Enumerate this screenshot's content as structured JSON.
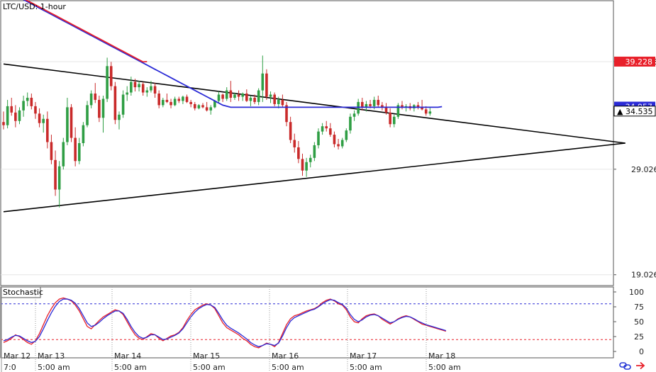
{
  "chart_data": {
    "type": "candlestick",
    "title": "LTC/USD: 1-hour",
    "indicator_title": "Stochastic",
    "price_axis": {
      "ticks": [
        "39.228",
        "29.026",
        "19.026"
      ],
      "tick_values": [
        39.228,
        29.026,
        19.026
      ],
      "ylim": [
        18.0,
        45.0
      ]
    },
    "markers": [
      {
        "label": "39.228",
        "value": 39.228,
        "color": "#e8202a"
      },
      {
        "label": "34.957",
        "value": 34.957,
        "color": "#2a2ad6"
      },
      {
        "label": "34.535",
        "value": 34.535,
        "color": "#000000"
      }
    ],
    "stoch_axis": {
      "ticks": [
        "100",
        "75",
        "50",
        "25",
        "0"
      ],
      "tick_values": [
        100,
        75,
        50,
        25,
        0
      ],
      "upper_level": 80,
      "lower_level": 20
    },
    "time_axis": {
      "dates": [
        "Mar 12",
        "Mar 13",
        "Mar 14",
        "Mar 15",
        "Mar 16",
        "Mar 17",
        "Mar 18"
      ],
      "times": [
        "7:0",
        "5:00 am",
        "5:00 am",
        "5:00 am",
        "5:00 am",
        "5:00 am",
        "5:00 am"
      ]
    },
    "candles": [
      [
        33.5,
        34.5,
        32.8,
        33.2
      ],
      [
        33.2,
        35.6,
        32.9,
        35.0
      ],
      [
        35.0,
        35.8,
        34.1,
        34.4
      ],
      [
        34.4,
        35.1,
        33.0,
        33.6
      ],
      [
        33.6,
        34.9,
        33.3,
        34.6
      ],
      [
        34.6,
        36.0,
        34.0,
        35.5
      ],
      [
        35.5,
        36.3,
        35.0,
        35.8
      ],
      [
        35.8,
        36.2,
        34.7,
        35.0
      ],
      [
        35.0,
        35.4,
        33.8,
        34.3
      ],
      [
        34.3,
        34.8,
        33.0,
        33.4
      ],
      [
        33.4,
        34.2,
        32.5,
        33.8
      ],
      [
        33.8,
        34.5,
        31.0,
        31.6
      ],
      [
        31.6,
        32.3,
        29.5,
        29.9
      ],
      [
        29.9,
        30.8,
        26.5,
        27.1
      ],
      [
        27.1,
        29.8,
        25.4,
        29.3
      ],
      [
        29.3,
        32.0,
        29.0,
        31.6
      ],
      [
        31.6,
        35.8,
        31.3,
        34.9
      ],
      [
        34.9,
        35.2,
        31.6,
        32.0
      ],
      [
        32.0,
        33.0,
        29.3,
        29.8
      ],
      [
        29.8,
        32.0,
        29.5,
        31.5
      ],
      [
        31.5,
        33.5,
        31.2,
        33.2
      ],
      [
        33.2,
        35.5,
        33.0,
        35.1
      ],
      [
        35.1,
        36.5,
        34.8,
        36.2
      ],
      [
        36.2,
        37.2,
        35.3,
        35.6
      ],
      [
        35.6,
        36.0,
        33.5,
        33.9
      ],
      [
        33.9,
        36.0,
        32.5,
        35.7
      ],
      [
        35.7,
        39.6,
        35.4,
        38.8
      ],
      [
        38.8,
        39.2,
        36.5,
        36.9
      ],
      [
        36.9,
        37.3,
        33.3,
        33.7
      ],
      [
        33.7,
        34.5,
        32.8,
        34.2
      ],
      [
        34.2,
        36.5,
        33.9,
        36.1
      ],
      [
        36.1,
        36.9,
        35.5,
        36.3
      ],
      [
        36.3,
        37.8,
        36.0,
        37.3
      ],
      [
        37.3,
        37.6,
        36.4,
        36.8
      ],
      [
        36.8,
        37.4,
        36.4,
        37.1
      ],
      [
        37.1,
        37.3,
        36.0,
        36.3
      ],
      [
        36.3,
        36.8,
        35.9,
        36.5
      ],
      [
        36.5,
        37.4,
        36.3,
        36.9
      ],
      [
        36.9,
        37.2,
        35.8,
        36.2
      ],
      [
        36.2,
        36.5,
        34.8,
        35.1
      ],
      [
        35.1,
        35.8,
        34.9,
        35.6
      ],
      [
        35.6,
        36.2,
        35.3,
        35.4
      ],
      [
        35.4,
        35.7,
        34.8,
        35.1
      ],
      [
        35.1,
        35.9,
        35.0,
        35.7
      ],
      [
        35.7,
        35.9,
        35.3,
        35.5
      ],
      [
        35.5,
        36.0,
        35.2,
        35.9
      ],
      [
        35.9,
        36.1,
        35.3,
        35.4
      ],
      [
        35.4,
        35.6,
        34.9,
        35.2
      ],
      [
        35.2,
        35.4,
        34.6,
        34.8
      ],
      [
        34.8,
        35.2,
        34.7,
        35.1
      ],
      [
        35.1,
        35.3,
        34.8,
        34.9
      ],
      [
        34.9,
        35.4,
        34.5,
        34.6
      ],
      [
        34.6,
        35.1,
        34.2,
        34.9
      ],
      [
        34.9,
        35.6,
        34.8,
        35.5
      ],
      [
        35.5,
        36.4,
        35.3,
        36.1
      ],
      [
        36.1,
        36.2,
        35.4,
        35.7
      ],
      [
        35.7,
        36.8,
        35.5,
        36.5
      ],
      [
        36.5,
        37.4,
        35.4,
        35.8
      ],
      [
        35.8,
        36.3,
        35.6,
        36.1
      ],
      [
        36.1,
        36.5,
        35.5,
        35.9
      ],
      [
        35.9,
        36.3,
        35.5,
        36.2
      ],
      [
        36.2,
        36.6,
        35.4,
        35.5
      ],
      [
        35.5,
        36.0,
        35.0,
        35.8
      ],
      [
        35.8,
        36.1,
        35.2,
        35.4
      ],
      [
        35.4,
        36.7,
        35.1,
        36.5
      ],
      [
        36.5,
        39.8,
        35.4,
        38.1
      ],
      [
        38.1,
        38.5,
        35.6,
        35.9
      ],
      [
        35.9,
        36.4,
        35.3,
        36.1
      ],
      [
        36.1,
        36.3,
        35.0,
        35.2
      ],
      [
        35.2,
        35.9,
        34.8,
        35.6
      ],
      [
        35.6,
        36.1,
        34.9,
        35.1
      ],
      [
        35.1,
        35.4,
        33.1,
        33.5
      ],
      [
        33.5,
        34.0,
        31.5,
        31.8
      ],
      [
        31.8,
        32.4,
        30.6,
        31.1
      ],
      [
        31.1,
        31.7,
        29.6,
        30.0
      ],
      [
        30.0,
        30.5,
        28.4,
        28.9
      ],
      [
        28.9,
        30.1,
        28.3,
        29.7
      ],
      [
        29.7,
        30.4,
        29.2,
        30.1
      ],
      [
        30.1,
        31.6,
        29.8,
        31.3
      ],
      [
        31.3,
        32.9,
        31.0,
        32.6
      ],
      [
        32.6,
        33.4,
        32.3,
        33.1
      ],
      [
        33.1,
        33.6,
        32.6,
        32.9
      ],
      [
        32.9,
        33.4,
        32.1,
        32.3
      ],
      [
        32.3,
        32.6,
        31.1,
        31.4
      ],
      [
        31.4,
        31.9,
        30.9,
        31.2
      ],
      [
        31.2,
        32.0,
        31.0,
        31.8
      ],
      [
        31.8,
        32.9,
        31.6,
        32.7
      ],
      [
        32.7,
        34.3,
        32.4,
        34.0
      ],
      [
        34.0,
        34.6,
        33.6,
        34.3
      ],
      [
        34.3,
        35.7,
        34.1,
        35.4
      ],
      [
        35.4,
        35.8,
        34.6,
        34.9
      ],
      [
        34.9,
        35.5,
        34.5,
        35.2
      ],
      [
        35.2,
        35.6,
        34.8,
        35.0
      ],
      [
        35.0,
        35.9,
        34.7,
        35.6
      ],
      [
        35.6,
        36.0,
        34.9,
        35.1
      ],
      [
        35.1,
        35.4,
        34.6,
        34.9
      ],
      [
        34.9,
        35.3,
        34.2,
        34.4
      ],
      [
        34.4,
        34.8,
        33.0,
        33.3
      ],
      [
        33.3,
        34.2,
        33.0,
        34.0
      ],
      [
        34.0,
        35.3,
        33.8,
        35.1
      ],
      [
        35.1,
        35.5,
        34.7,
        34.9
      ],
      [
        34.9,
        35.2,
        34.5,
        35.0
      ],
      [
        35.0,
        35.3,
        34.6,
        34.8
      ],
      [
        34.8,
        35.2,
        34.5,
        35.1
      ],
      [
        35.1,
        35.4,
        34.7,
        34.9
      ],
      [
        34.9,
        35.6,
        34.6,
        34.7
      ],
      [
        34.7,
        35.0,
        34.1,
        34.3
      ],
      [
        34.3,
        34.9,
        34.1,
        34.5
      ]
    ],
    "series": [
      {
        "name": "SMA",
        "color": "#2a2ad6",
        "values": [
          46.1,
          45.9,
          45.7,
          45.5,
          45.3,
          45.1,
          44.9,
          44.7,
          44.5,
          44.3,
          44.1,
          43.9,
          43.7,
          43.5,
          43.3,
          43.1,
          42.9,
          42.7,
          42.5,
          42.3,
          42.1,
          41.9,
          41.7,
          41.5,
          41.3,
          41.1,
          40.9,
          40.7,
          40.5,
          40.3,
          40.1,
          39.9,
          39.7,
          39.5,
          39.3,
          39.1,
          38.9,
          38.7,
          38.5,
          38.3,
          38.1,
          37.9,
          37.7,
          37.5,
          37.3,
          37.1,
          36.9,
          36.7,
          36.5,
          36.3,
          36.1,
          35.9,
          35.7,
          35.5,
          35.3,
          35.1,
          35.0,
          34.9,
          34.9,
          34.9,
          34.9,
          34.9,
          34.9,
          34.9,
          34.9,
          34.9,
          34.9,
          34.9,
          34.9,
          34.9,
          34.9,
          34.9,
          34.9,
          34.9,
          34.9,
          34.9,
          34.9,
          34.9,
          34.9,
          34.9,
          34.9,
          34.9,
          34.9,
          34.9,
          34.9,
          34.9,
          34.9,
          34.9,
          34.9,
          34.9,
          34.9,
          34.9,
          34.9,
          34.9,
          34.9,
          34.9,
          34.9,
          34.9,
          34.9,
          34.9,
          34.9,
          34.9,
          34.9,
          34.9,
          34.9,
          34.9,
          34.9,
          34.9,
          34.9,
          34.9,
          34.96
        ]
      },
      {
        "name": "EMA",
        "color": "#e8202a",
        "values": [
          46.2,
          46.0,
          45.8,
          45.6,
          45.4,
          45.2,
          45.0,
          44.8,
          44.6,
          44.4,
          44.2,
          44.0,
          43.8,
          43.6,
          43.4,
          43.2,
          43.0,
          42.8,
          42.6,
          42.4,
          42.2,
          42.0,
          41.8,
          41.6,
          41.4,
          41.2,
          41.0,
          40.8,
          40.6,
          40.4,
          40.2,
          40.0,
          39.8,
          39.6,
          39.4,
          39.2,
          39.23
        ]
      },
      {
        "name": "%K",
        "color": "#e8202a",
        "values": [
          15,
          18,
          22,
          28,
          25,
          20,
          15,
          12,
          18,
          30,
          45,
          60,
          72,
          82,
          88,
          90,
          88,
          85,
          78,
          68,
          55,
          42,
          38,
          45,
          52,
          58,
          62,
          66,
          70,
          68,
          62,
          50,
          38,
          28,
          22,
          20,
          25,
          30,
          28,
          22,
          18,
          22,
          26,
          28,
          32,
          40,
          52,
          62,
          70,
          74,
          78,
          80,
          78,
          72,
          60,
          48,
          40,
          36,
          32,
          28,
          22,
          18,
          12,
          8,
          6,
          10,
          14,
          12,
          8,
          15,
          30,
          45,
          55,
          60,
          62,
          65,
          68,
          70,
          72,
          76,
          82,
          86,
          88,
          85,
          80,
          78,
          70,
          58,
          50,
          48,
          55,
          60,
          62,
          63,
          60,
          54,
          50,
          46,
          50,
          55,
          58,
          60,
          58,
          54,
          50,
          46,
          44,
          42,
          40,
          38,
          36,
          34
        ]
      },
      {
        "name": "%D",
        "color": "#2a2ad6",
        "values": [
          18,
          20,
          24,
          27,
          26,
          22,
          18,
          15,
          17,
          25,
          38,
          52,
          65,
          76,
          84,
          88,
          88,
          86,
          81,
          72,
          60,
          48,
          42,
          44,
          49,
          55,
          60,
          64,
          68,
          68,
          64,
          54,
          42,
          32,
          25,
          22,
          24,
          28,
          28,
          24,
          20,
          21,
          24,
          27,
          31,
          38,
          48,
          58,
          66,
          72,
          76,
          79,
          78,
          74,
          64,
          53,
          44,
          39,
          35,
          31,
          26,
          21,
          15,
          11,
          8,
          10,
          13,
          12,
          10,
          14,
          26,
          40,
          51,
          57,
          60,
          63,
          66,
          69,
          71,
          75,
          80,
          84,
          87,
          86,
          82,
          79,
          73,
          62,
          54,
          50,
          53,
          58,
          61,
          62,
          60,
          56,
          52,
          48,
          50,
          54,
          57,
          59,
          58,
          55,
          51,
          48,
          45,
          43,
          41,
          39,
          37,
          35
        ]
      }
    ],
    "trendlines": [
      {
        "name": "upper",
        "from": [
          0,
          39.0
        ],
        "to": [
          156,
          31.5
        ]
      },
      {
        "name": "lower",
        "from": [
          0,
          25.0
        ],
        "to": [
          156,
          31.5
        ]
      }
    ]
  }
}
